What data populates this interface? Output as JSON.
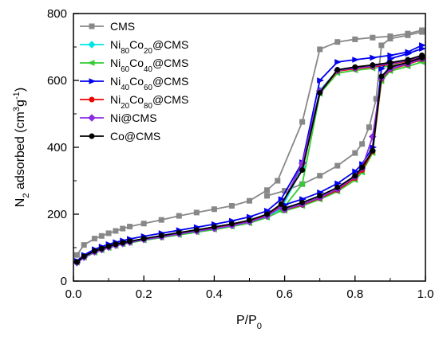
{
  "chart_data": {
    "type": "line",
    "xlabel": "P/P0",
    "ylabel": "N2 adsorbed (cm3g-1)",
    "xlim": [
      0,
      1.0
    ],
    "ylim": [
      0,
      800
    ],
    "x_ticks": [
      "0.0",
      "0.2",
      "0.4",
      "0.6",
      "0.8",
      "1.0"
    ],
    "y_ticks": [
      "0",
      "200",
      "400",
      "600",
      "800"
    ],
    "grid": false,
    "legend_position": "top-left",
    "series": [
      {
        "name": "CMS",
        "color": "#888888",
        "marker": "square",
        "adsorption": [
          [
            0.01,
            78
          ],
          [
            0.03,
            108
          ],
          [
            0.06,
            127
          ],
          [
            0.08,
            135
          ],
          [
            0.1,
            143
          ],
          [
            0.12,
            150
          ],
          [
            0.14,
            157
          ],
          [
            0.16,
            163
          ],
          [
            0.2,
            172
          ],
          [
            0.25,
            183
          ],
          [
            0.3,
            195
          ],
          [
            0.35,
            205
          ],
          [
            0.4,
            215
          ],
          [
            0.45,
            225
          ],
          [
            0.5,
            240
          ],
          [
            0.55,
            272
          ],
          [
            0.58,
            300
          ],
          [
            0.65,
            476
          ],
          [
            0.7,
            693
          ],
          [
            0.75,
            715
          ],
          [
            0.8,
            723
          ],
          [
            0.85,
            728
          ],
          [
            0.9,
            732
          ],
          [
            0.95,
            740
          ],
          [
            0.99,
            750
          ]
        ],
        "desorption": [
          [
            0.99,
            745
          ],
          [
            0.95,
            735
          ],
          [
            0.9,
            725
          ],
          [
            0.875,
            705
          ],
          [
            0.86,
            545
          ],
          [
            0.84,
            460
          ],
          [
            0.82,
            410
          ],
          [
            0.8,
            383
          ],
          [
            0.75,
            345
          ],
          [
            0.7,
            315
          ],
          [
            0.65,
            290
          ],
          [
            0.6,
            270
          ],
          [
            0.55,
            255
          ]
        ]
      },
      {
        "name": "Ni80Co20@CMS",
        "color": "#00e5e5",
        "marker": "diamond",
        "adsorption": [
          [
            0.01,
            57
          ],
          [
            0.03,
            72
          ],
          [
            0.06,
            88
          ],
          [
            0.08,
            95
          ],
          [
            0.1,
            102
          ],
          [
            0.12,
            108
          ],
          [
            0.14,
            113
          ],
          [
            0.16,
            117
          ],
          [
            0.2,
            125
          ],
          [
            0.25,
            133
          ],
          [
            0.3,
            142
          ],
          [
            0.35,
            150
          ],
          [
            0.4,
            158
          ],
          [
            0.45,
            167
          ],
          [
            0.5,
            178
          ],
          [
            0.55,
            195
          ],
          [
            0.59,
            215
          ],
          [
            0.65,
            340
          ],
          [
            0.7,
            570
          ],
          [
            0.75,
            630
          ],
          [
            0.8,
            637
          ],
          [
            0.85,
            643
          ],
          [
            0.9,
            650
          ],
          [
            0.95,
            660
          ],
          [
            0.99,
            672
          ]
        ],
        "desorption": [
          [
            0.99,
            665
          ],
          [
            0.95,
            650
          ],
          [
            0.9,
            635
          ],
          [
            0.875,
            608
          ],
          [
            0.85,
            390
          ],
          [
            0.82,
            335
          ],
          [
            0.8,
            310
          ],
          [
            0.75,
            275
          ],
          [
            0.7,
            250
          ],
          [
            0.65,
            230
          ],
          [
            0.6,
            215
          ]
        ]
      },
      {
        "name": "Ni60Co40@CMS",
        "color": "#33cc33",
        "marker": "triangle-left",
        "adsorption": [
          [
            0.01,
            55
          ],
          [
            0.03,
            70
          ],
          [
            0.06,
            85
          ],
          [
            0.08,
            92
          ],
          [
            0.1,
            99
          ],
          [
            0.12,
            105
          ],
          [
            0.14,
            110
          ],
          [
            0.16,
            114
          ],
          [
            0.2,
            122
          ],
          [
            0.25,
            130
          ],
          [
            0.3,
            138
          ],
          [
            0.35,
            146
          ],
          [
            0.4,
            154
          ],
          [
            0.45,
            163
          ],
          [
            0.5,
            173
          ],
          [
            0.55,
            190
          ],
          [
            0.59,
            210
          ],
          [
            0.65,
            290
          ],
          [
            0.7,
            560
          ],
          [
            0.75,
            622
          ],
          [
            0.8,
            630
          ],
          [
            0.85,
            636
          ],
          [
            0.9,
            643
          ],
          [
            0.95,
            652
          ],
          [
            0.99,
            660
          ]
        ],
        "desorption": [
          [
            0.99,
            655
          ],
          [
            0.95,
            642
          ],
          [
            0.9,
            628
          ],
          [
            0.875,
            598
          ],
          [
            0.85,
            383
          ],
          [
            0.82,
            325
          ],
          [
            0.8,
            302
          ],
          [
            0.75,
            268
          ],
          [
            0.7,
            244
          ],
          [
            0.65,
            225
          ],
          [
            0.6,
            210
          ]
        ]
      },
      {
        "name": "Ni40Co60@CMS",
        "color": "#0000ee",
        "marker": "triangle-right",
        "adsorption": [
          [
            0.01,
            60
          ],
          [
            0.03,
            78
          ],
          [
            0.06,
            95
          ],
          [
            0.08,
            103
          ],
          [
            0.1,
            110
          ],
          [
            0.12,
            116
          ],
          [
            0.14,
            121
          ],
          [
            0.16,
            126
          ],
          [
            0.2,
            134
          ],
          [
            0.25,
            143
          ],
          [
            0.3,
            152
          ],
          [
            0.35,
            161
          ],
          [
            0.4,
            170
          ],
          [
            0.45,
            180
          ],
          [
            0.5,
            192
          ],
          [
            0.55,
            210
          ],
          [
            0.59,
            245
          ],
          [
            0.65,
            355
          ],
          [
            0.7,
            600
          ],
          [
            0.75,
            655
          ],
          [
            0.8,
            662
          ],
          [
            0.85,
            668
          ],
          [
            0.9,
            675
          ],
          [
            0.95,
            685
          ],
          [
            0.99,
            705
          ]
        ],
        "desorption": [
          [
            0.99,
            695
          ],
          [
            0.95,
            680
          ],
          [
            0.9,
            665
          ],
          [
            0.875,
            635
          ],
          [
            0.85,
            400
          ],
          [
            0.82,
            350
          ],
          [
            0.8,
            328
          ],
          [
            0.75,
            292
          ],
          [
            0.7,
            265
          ],
          [
            0.65,
            245
          ],
          [
            0.6,
            228
          ]
        ]
      },
      {
        "name": "Ni20Co80@CMS",
        "color": "#ee0000",
        "marker": "circle",
        "adsorption": [
          [
            0.01,
            56
          ],
          [
            0.03,
            73
          ],
          [
            0.06,
            89
          ],
          [
            0.08,
            96
          ],
          [
            0.1,
            103
          ],
          [
            0.12,
            109
          ],
          [
            0.14,
            114
          ],
          [
            0.16,
            118
          ],
          [
            0.2,
            126
          ],
          [
            0.25,
            134
          ],
          [
            0.3,
            143
          ],
          [
            0.35,
            151
          ],
          [
            0.4,
            159
          ],
          [
            0.45,
            168
          ],
          [
            0.5,
            179
          ],
          [
            0.55,
            196
          ],
          [
            0.59,
            225
          ],
          [
            0.65,
            350
          ],
          [
            0.7,
            565
          ],
          [
            0.75,
            628
          ],
          [
            0.8,
            635
          ],
          [
            0.85,
            641
          ],
          [
            0.9,
            648
          ],
          [
            0.95,
            658
          ],
          [
            0.99,
            670
          ]
        ],
        "desorption": [
          [
            0.99,
            663
          ],
          [
            0.95,
            648
          ],
          [
            0.9,
            633
          ],
          [
            0.875,
            604
          ],
          [
            0.85,
            388
          ],
          [
            0.82,
            332
          ],
          [
            0.8,
            308
          ],
          [
            0.75,
            272
          ],
          [
            0.7,
            248
          ],
          [
            0.65,
            228
          ],
          [
            0.6,
            213
          ]
        ]
      },
      {
        "name": "Ni@CMS",
        "color": "#8a2be2",
        "marker": "diamond",
        "adsorption": [
          [
            0.01,
            55
          ],
          [
            0.03,
            71
          ],
          [
            0.06,
            87
          ],
          [
            0.08,
            94
          ],
          [
            0.1,
            101
          ],
          [
            0.12,
            107
          ],
          [
            0.14,
            112
          ],
          [
            0.16,
            116
          ],
          [
            0.2,
            124
          ],
          [
            0.25,
            132
          ],
          [
            0.3,
            141
          ],
          [
            0.35,
            149
          ],
          [
            0.4,
            157
          ],
          [
            0.45,
            166
          ],
          [
            0.5,
            177
          ],
          [
            0.55,
            194
          ],
          [
            0.59,
            222
          ],
          [
            0.65,
            352
          ],
          [
            0.7,
            568
          ],
          [
            0.75,
            630
          ],
          [
            0.8,
            637
          ],
          [
            0.85,
            643
          ],
          [
            0.9,
            650
          ],
          [
            0.95,
            660
          ],
          [
            0.99,
            672
          ]
        ],
        "desorption": [
          [
            0.99,
            665
          ],
          [
            0.95,
            650
          ],
          [
            0.9,
            635
          ],
          [
            0.875,
            606
          ],
          [
            0.85,
            432
          ],
          [
            0.82,
            338
          ],
          [
            0.8,
            312
          ],
          [
            0.75,
            275
          ],
          [
            0.7,
            250
          ],
          [
            0.65,
            230
          ],
          [
            0.6,
            214
          ]
        ]
      },
      {
        "name": "Co@CMS",
        "color": "#000000",
        "marker": "circle",
        "adsorption": [
          [
            0.01,
            57
          ],
          [
            0.03,
            74
          ],
          [
            0.06,
            90
          ],
          [
            0.08,
            97
          ],
          [
            0.1,
            104
          ],
          [
            0.12,
            110
          ],
          [
            0.14,
            115
          ],
          [
            0.16,
            119
          ],
          [
            0.2,
            127
          ],
          [
            0.25,
            136
          ],
          [
            0.3,
            145
          ],
          [
            0.35,
            153
          ],
          [
            0.4,
            162
          ],
          [
            0.45,
            171
          ],
          [
            0.5,
            182
          ],
          [
            0.55,
            200
          ],
          [
            0.59,
            230
          ],
          [
            0.65,
            332
          ],
          [
            0.7,
            563
          ],
          [
            0.75,
            632
          ],
          [
            0.8,
            640
          ],
          [
            0.85,
            646
          ],
          [
            0.9,
            653
          ],
          [
            0.95,
            662
          ],
          [
            0.99,
            675
          ]
        ],
        "desorption": [
          [
            0.99,
            668
          ],
          [
            0.95,
            654
          ],
          [
            0.9,
            640
          ],
          [
            0.875,
            612
          ],
          [
            0.85,
            390
          ],
          [
            0.82,
            340
          ],
          [
            0.8,
            315
          ],
          [
            0.75,
            280
          ],
          [
            0.7,
            255
          ],
          [
            0.65,
            235
          ],
          [
            0.6,
            218
          ]
        ]
      }
    ]
  }
}
